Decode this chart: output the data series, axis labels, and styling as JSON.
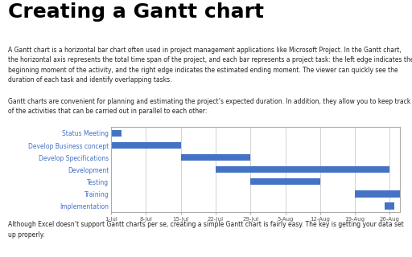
{
  "title": "Creating a Gantt chart",
  "para1": "A Gantt chart is a horizontal bar chart often used in project management applications like Microsoft Project. In the Gantt chart,\nthe horizontal axis represents the total time span of the project, and each bar represents a project task: the left edge indicates the\nbeginning moment of the activity, and the right edge indicates the estimated ending moment. The viewer can quickly see the\nduration of each task and identify overlapping tasks.",
  "para2": "Gantt charts are convenient for planning and estimating the project’s expected duration. In addition, they allow you to keep track\nof the activities that can be carried out in parallel to each other:",
  "footer": "Although Excel doesn’t support Gantt charts per se, creating a simple Gantt chart is fairly easy. The key is getting your data set\nup properly.",
  "tasks": [
    "Status Meeting",
    "Develop Business concept",
    "Develop Specifications",
    "Development",
    "Testing",
    "Training",
    "Implementation"
  ],
  "start_days": [
    0,
    0,
    14,
    21,
    28,
    49,
    55
  ],
  "durations": [
    2,
    14,
    14,
    35,
    14,
    9,
    2
  ],
  "bar_color": "#4472C4",
  "bar_height": 0.55,
  "x_ticks": [
    0,
    7,
    14,
    21,
    28,
    35,
    42,
    49,
    56
  ],
  "x_tick_labels": [
    "1-Jul",
    "8-Jul",
    "15-Jul",
    "22-Jul",
    "29-Jul",
    "5-Aug",
    "12-Aug",
    "19-Aug",
    "26-Aug"
  ],
  "xlim": [
    0,
    58
  ],
  "chart_bg": "#ffffff",
  "page_bg": "#ffffff",
  "grid_color": "#cccccc",
  "axis_label_color": "#4472C4",
  "border_color": "#aaaaaa",
  "text_color": "#222222",
  "title_fontsize": 18,
  "body_fontsize": 5.5,
  "axis_fontsize": 5.5,
  "footer_fontsize": 5.5
}
